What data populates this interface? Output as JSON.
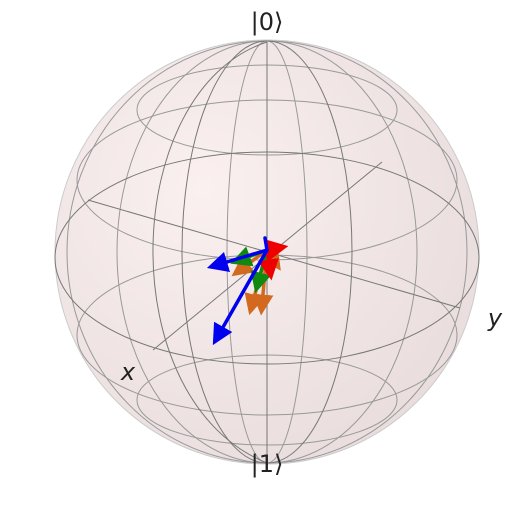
{
  "labels": {
    "north": "|0⟩",
    "south": "|1⟩",
    "x": "x",
    "y": "y"
  }
}
